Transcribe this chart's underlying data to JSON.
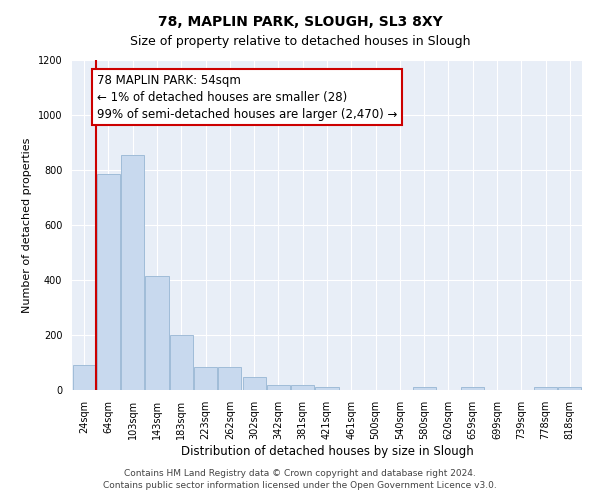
{
  "title": "78, MAPLIN PARK, SLOUGH, SL3 8XY",
  "subtitle": "Size of property relative to detached houses in Slough",
  "xlabel": "Distribution of detached houses by size in Slough",
  "ylabel": "Number of detached properties",
  "bar_labels": [
    "24sqm",
    "64sqm",
    "103sqm",
    "143sqm",
    "183sqm",
    "223sqm",
    "262sqm",
    "302sqm",
    "342sqm",
    "381sqm",
    "421sqm",
    "461sqm",
    "500sqm",
    "540sqm",
    "580sqm",
    "620sqm",
    "659sqm",
    "699sqm",
    "739sqm",
    "778sqm",
    "818sqm"
  ],
  "bar_heights": [
    90,
    785,
    855,
    415,
    200,
    82,
    82,
    48,
    20,
    20,
    10,
    0,
    0,
    0,
    10,
    0,
    10,
    0,
    0,
    10,
    10
  ],
  "bar_color": "#c8d9ee",
  "bar_edge_color": "#a0bcd8",
  "annotation_box_text": "78 MAPLIN PARK: 54sqm\n← 1% of detached houses are smaller (28)\n99% of semi-detached houses are larger (2,470) →",
  "annotation_box_color": "#ffffff",
  "annotation_box_edge_color": "#cc0000",
  "vline_color": "#cc0000",
  "ylim": [
    0,
    1200
  ],
  "yticks": [
    0,
    200,
    400,
    600,
    800,
    1000,
    1200
  ],
  "footer_line1": "Contains HM Land Registry data © Crown copyright and database right 2024.",
  "footer_line2": "Contains public sector information licensed under the Open Government Licence v3.0.",
  "bg_color": "#ffffff",
  "plot_bg_color": "#e8eef7",
  "grid_color": "#ffffff",
  "title_fontsize": 10,
  "xlabel_fontsize": 8.5,
  "ylabel_fontsize": 8,
  "tick_fontsize": 7,
  "annotation_fontsize": 8.5,
  "footer_fontsize": 6.5
}
